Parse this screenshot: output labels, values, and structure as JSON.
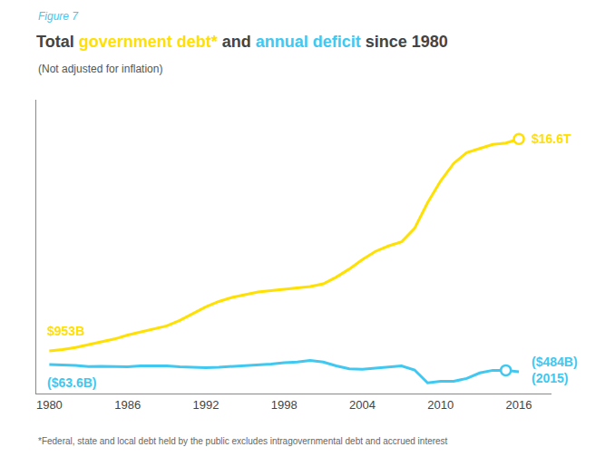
{
  "chart_data": {
    "type": "line",
    "figure_label": "Figure 7",
    "title": "Total government debt* and annual deficit since 1980",
    "subtitle": "(Not adjusted for inflation)",
    "footnote": "*Federal, state and local debt held by the public excludes intragovernmental debt and accrued interest",
    "x": [
      1980,
      1981,
      1982,
      1983,
      1984,
      1985,
      1986,
      1987,
      1988,
      1989,
      1990,
      1991,
      1992,
      1993,
      1994,
      1995,
      1996,
      1997,
      1998,
      1999,
      2000,
      2001,
      2002,
      2003,
      2004,
      2005,
      2006,
      2007,
      2008,
      2009,
      2010,
      2011,
      2012,
      2013,
      2014,
      2015,
      2016
    ],
    "series": [
      {
        "name": "government debt*",
        "color": "#FFE000",
        "values": [
          953,
          1050,
          1200,
          1410,
          1590,
          1830,
          2120,
          2340,
          2550,
          2800,
          3200,
          3700,
          4200,
          4600,
          4900,
          5100,
          5300,
          5400,
          5500,
          5600,
          5700,
          5900,
          6400,
          7000,
          7700,
          8300,
          8700,
          9000,
          10000,
          11900,
          13500,
          14800,
          15600,
          15900,
          16200,
          16300,
          16600
        ],
        "annotations": [
          {
            "x": 1980,
            "text": "$953B"
          },
          {
            "x": 2016,
            "text": "$16.6T",
            "marker": "circle"
          }
        ]
      },
      {
        "name": "annual deficit",
        "color": "#40C8F0",
        "values": [
          -63.6,
          -79,
          -128,
          -208,
          -185,
          -212,
          -221,
          -149,
          -155,
          -152,
          -221,
          -269,
          -290,
          -255,
          -203,
          -164,
          -107,
          -22,
          69,
          126,
          236,
          128,
          -158,
          -378,
          -413,
          -318,
          -248,
          -161,
          -459,
          -1413,
          -1294,
          -1300,
          -1087,
          -680,
          -485,
          -484,
          -590
        ],
        "annotations": [
          {
            "x": 1980,
            "text": "($63.6B)"
          },
          {
            "x": 2015,
            "text": "($484B)\n(2015)",
            "marker": "circle"
          }
        ]
      }
    ],
    "xlim": [
      1979,
      2018.5
    ],
    "xticks": [
      1980,
      1986,
      1992,
      1998,
      2004,
      2010,
      2016
    ],
    "ylim": [
      -2200,
      19500
    ],
    "grid": false,
    "tick_labels": "x"
  }
}
